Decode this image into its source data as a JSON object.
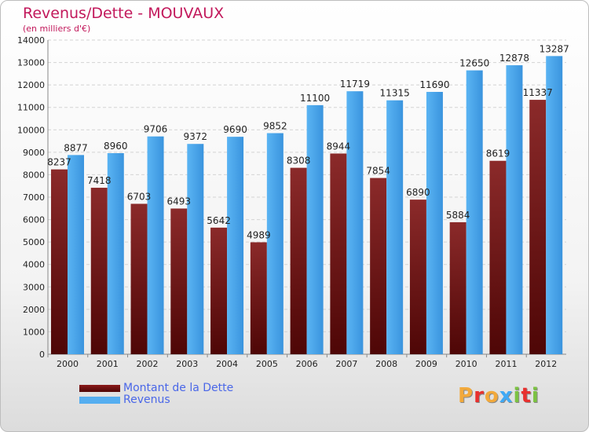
{
  "header": {
    "title": "Revenus/Dette - MOUVAUX",
    "subtitle": "(en milliers d'€)"
  },
  "legend": {
    "debt_label": "Montant de la Dette",
    "revenue_label": "Revenus"
  },
  "logo": {
    "text": "Proxiti",
    "letters": [
      "P",
      "r",
      "o",
      "x",
      "i",
      "t",
      "i"
    ],
    "colors": [
      "#f2a93b",
      "#e8312f",
      "#f2a93b",
      "#3fa9f5",
      "#7cc242",
      "#e8312f",
      "#7cc242"
    ]
  },
  "colors": {
    "debt": "#8b1a1a",
    "debt_dark": "#5a0a0a",
    "revenue": "#55aef0",
    "revenue_dark": "#2e7fc7",
    "title": "#c2185b",
    "legend_text": "#4a67e8"
  },
  "chart_data": {
    "type": "bar",
    "categories": [
      "2000",
      "2001",
      "2002",
      "2003",
      "2004",
      "2005",
      "2006",
      "2007",
      "2008",
      "2009",
      "2010",
      "2011",
      "2012"
    ],
    "series": [
      {
        "name": "Montant de la Dette",
        "values": [
          8237,
          7418,
          6703,
          6493,
          5642,
          4989,
          8308,
          8944,
          7854,
          6890,
          5884,
          8619,
          11337
        ]
      },
      {
        "name": "Revenus",
        "values": [
          8877,
          8960,
          9706,
          9372,
          9690,
          9852,
          11100,
          11719,
          11315,
          11690,
          12650,
          12878,
          13287
        ]
      }
    ],
    "yticks": [
      "0",
      "1000",
      "2000",
      "3000",
      "4000",
      "5000",
      "6000",
      "7000",
      "8000",
      "9000",
      "10000",
      "11000",
      "12000",
      "13000",
      "14000"
    ],
    "ylim": [
      0,
      14000
    ],
    "grid": true,
    "legend_position": "bottom-left"
  }
}
